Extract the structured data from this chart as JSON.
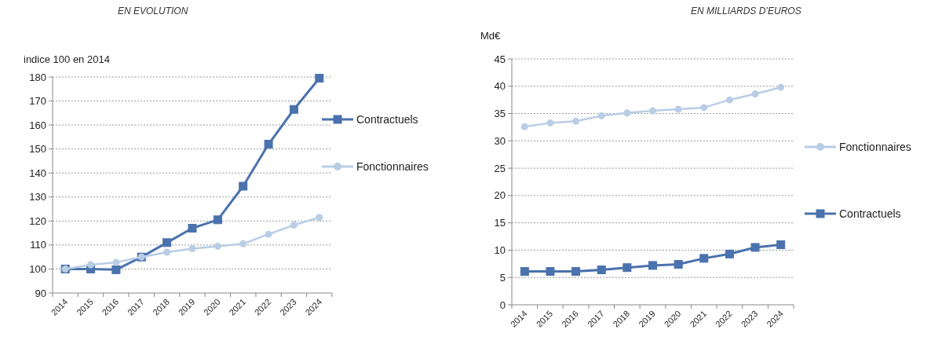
{
  "chart_data": [
    {
      "type": "line",
      "title": "EN EVOLUTION",
      "ylabel": "indice 100 en 2014",
      "categories": [
        "2014",
        "2015",
        "2016",
        "2017",
        "2018",
        "2019",
        "2020",
        "2021",
        "2022",
        "2023",
        "2024"
      ],
      "series": [
        {
          "name": "Contractuels",
          "color": "#4a72ad",
          "marker": "square",
          "values": [
            100,
            100,
            99.7,
            105,
            111,
            117,
            120.5,
            134.5,
            152,
            166.5,
            179.5
          ]
        },
        {
          "name": "Fonctionnaires",
          "color": "#b9cde5",
          "marker": "circle",
          "values": [
            100,
            101.8,
            102.8,
            105,
            107,
            108.5,
            109.5,
            110.5,
            114.5,
            118.3,
            121.5
          ]
        }
      ],
      "ylim": [
        90,
        180
      ],
      "yticks": [
        90,
        100,
        110,
        120,
        130,
        140,
        150,
        160,
        170,
        180
      ],
      "grid": "y",
      "legend": "right"
    },
    {
      "type": "line",
      "title": "EN MILLIARDS D’EUROS",
      "ylabel": "Md€",
      "categories": [
        "2014",
        "2015",
        "2016",
        "2017",
        "2018",
        "2019",
        "2020",
        "2021",
        "2022",
        "2023",
        "2024"
      ],
      "series": [
        {
          "name": "Fonctionnaires",
          "color": "#b9cde5",
          "marker": "circle",
          "values": [
            32.6,
            33.3,
            33.6,
            34.6,
            35.1,
            35.5,
            35.8,
            36.1,
            37.5,
            38.6,
            39.8
          ]
        },
        {
          "name": "Contractuels",
          "color": "#4a72ad",
          "marker": "square",
          "values": [
            6.1,
            6.1,
            6.1,
            6.4,
            6.8,
            7.2,
            7.4,
            8.5,
            9.3,
            10.5,
            11
          ]
        }
      ],
      "ylim": [
        0,
        45
      ],
      "yticks": [
        0,
        5,
        10,
        15,
        20,
        25,
        30,
        35,
        40,
        45
      ],
      "grid": "y",
      "legend": "right"
    }
  ]
}
